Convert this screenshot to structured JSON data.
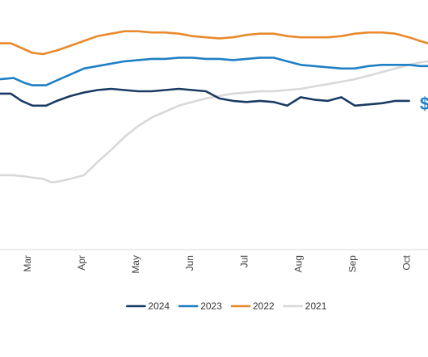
{
  "chart_data": {
    "type": "line",
    "title": "",
    "xlabel": "",
    "ylabel": "",
    "grid": false,
    "legend_position": "bottom-center",
    "x_tick_labels": [
      "Mar",
      "Apr",
      "May",
      "Jun",
      "Jul",
      "Aug",
      "Sep",
      "Oct"
    ],
    "x_tick_positions": [
      3,
      4,
      5,
      6,
      7,
      8,
      9,
      10
    ],
    "x_range": [
      2.45,
      10.35
    ],
    "y_range": [
      0,
      100
    ],
    "annotation": {
      "text": "$",
      "color": "#1f7fc4",
      "x": 10.2,
      "y": 61
    },
    "series": [
      {
        "name": "2024",
        "color": "#1a3a63",
        "points": [
          [
            2.45,
            65
          ],
          [
            2.65,
            65
          ],
          [
            2.85,
            62
          ],
          [
            3.05,
            60
          ],
          [
            3.3,
            60
          ],
          [
            3.5,
            62
          ],
          [
            3.75,
            64
          ],
          [
            4.0,
            65.5
          ],
          [
            4.25,
            66.5
          ],
          [
            4.5,
            67
          ],
          [
            4.75,
            66.5
          ],
          [
            5.0,
            66
          ],
          [
            5.25,
            66
          ],
          [
            5.5,
            66.5
          ],
          [
            5.75,
            67
          ],
          [
            6.0,
            66.5
          ],
          [
            6.25,
            66
          ],
          [
            6.5,
            63
          ],
          [
            6.75,
            62
          ],
          [
            7.0,
            61.5
          ],
          [
            7.25,
            62
          ],
          [
            7.5,
            61.5
          ],
          [
            7.75,
            60
          ],
          [
            8.0,
            63.5
          ],
          [
            8.25,
            62.5
          ],
          [
            8.5,
            62
          ],
          [
            8.75,
            63.5
          ],
          [
            9.0,
            60
          ],
          [
            9.25,
            60.5
          ],
          [
            9.5,
            61
          ],
          [
            9.75,
            62
          ],
          [
            10.0,
            62
          ]
        ]
      },
      {
        "name": "2023",
        "color": "#1f7fc4",
        "points": [
          [
            2.45,
            71
          ],
          [
            2.7,
            71.5
          ],
          [
            2.9,
            69.5
          ],
          [
            3.05,
            68.5
          ],
          [
            3.3,
            68.5
          ],
          [
            3.5,
            70.5
          ],
          [
            3.75,
            73
          ],
          [
            4.0,
            75.5
          ],
          [
            4.25,
            76.5
          ],
          [
            4.5,
            77.5
          ],
          [
            4.75,
            78.5
          ],
          [
            5.0,
            79
          ],
          [
            5.25,
            79.5
          ],
          [
            5.5,
            79.5
          ],
          [
            5.75,
            80
          ],
          [
            6.0,
            80
          ],
          [
            6.25,
            79.5
          ],
          [
            6.5,
            79.5
          ],
          [
            6.75,
            79
          ],
          [
            7.0,
            79.5
          ],
          [
            7.25,
            80
          ],
          [
            7.5,
            80
          ],
          [
            7.75,
            78.5
          ],
          [
            8.0,
            77
          ],
          [
            8.25,
            76.5
          ],
          [
            8.5,
            76
          ],
          [
            8.75,
            75.5
          ],
          [
            9.0,
            75.5
          ],
          [
            9.25,
            76.5
          ],
          [
            9.5,
            77
          ],
          [
            9.75,
            77
          ],
          [
            10.0,
            77
          ],
          [
            10.2,
            76.5
          ],
          [
            10.35,
            76.5
          ]
        ]
      },
      {
        "name": "2022",
        "color": "#e8892c",
        "points": [
          [
            2.45,
            86
          ],
          [
            2.65,
            86
          ],
          [
            2.85,
            84
          ],
          [
            3.05,
            82
          ],
          [
            3.25,
            81.5
          ],
          [
            3.5,
            83
          ],
          [
            3.75,
            85
          ],
          [
            4.0,
            87
          ],
          [
            4.25,
            89
          ],
          [
            4.5,
            90
          ],
          [
            4.75,
            91
          ],
          [
            5.0,
            91
          ],
          [
            5.25,
            90.5
          ],
          [
            5.5,
            90.5
          ],
          [
            5.75,
            90
          ],
          [
            6.0,
            89
          ],
          [
            6.25,
            88.5
          ],
          [
            6.5,
            88
          ],
          [
            6.75,
            88.5
          ],
          [
            7.0,
            89.5
          ],
          [
            7.25,
            90
          ],
          [
            7.5,
            90
          ],
          [
            7.75,
            89
          ],
          [
            8.0,
            88.5
          ],
          [
            8.25,
            88.5
          ],
          [
            8.5,
            88.5
          ],
          [
            8.75,
            89
          ],
          [
            9.0,
            90
          ],
          [
            9.25,
            90.5
          ],
          [
            9.5,
            90.5
          ],
          [
            9.75,
            90
          ],
          [
            10.0,
            88.5
          ],
          [
            10.2,
            87
          ],
          [
            10.35,
            86
          ]
        ]
      },
      {
        "name": "2021",
        "color": "#d8d8d8",
        "points": [
          [
            2.45,
            31
          ],
          [
            2.7,
            31
          ],
          [
            2.9,
            30.5
          ],
          [
            3.05,
            30
          ],
          [
            3.25,
            29.5
          ],
          [
            3.4,
            28
          ],
          [
            3.55,
            28.5
          ],
          [
            3.75,
            29.5
          ],
          [
            4.0,
            31
          ],
          [
            4.25,
            36.5
          ],
          [
            4.5,
            41.5
          ],
          [
            4.75,
            47
          ],
          [
            5.0,
            51.5
          ],
          [
            5.25,
            55
          ],
          [
            5.5,
            57.5
          ],
          [
            5.75,
            60
          ],
          [
            6.0,
            61.5
          ],
          [
            6.25,
            63
          ],
          [
            6.5,
            64
          ],
          [
            6.75,
            65
          ],
          [
            7.0,
            65.5
          ],
          [
            7.25,
            66
          ],
          [
            7.5,
            66
          ],
          [
            7.75,
            66.5
          ],
          [
            8.0,
            67
          ],
          [
            8.25,
            68
          ],
          [
            8.5,
            69
          ],
          [
            8.75,
            70
          ],
          [
            9.0,
            71
          ],
          [
            9.25,
            72.5
          ],
          [
            9.5,
            74
          ],
          [
            9.75,
            75.5
          ],
          [
            10.0,
            77
          ],
          [
            10.2,
            78
          ],
          [
            10.35,
            78.5
          ]
        ]
      }
    ]
  }
}
